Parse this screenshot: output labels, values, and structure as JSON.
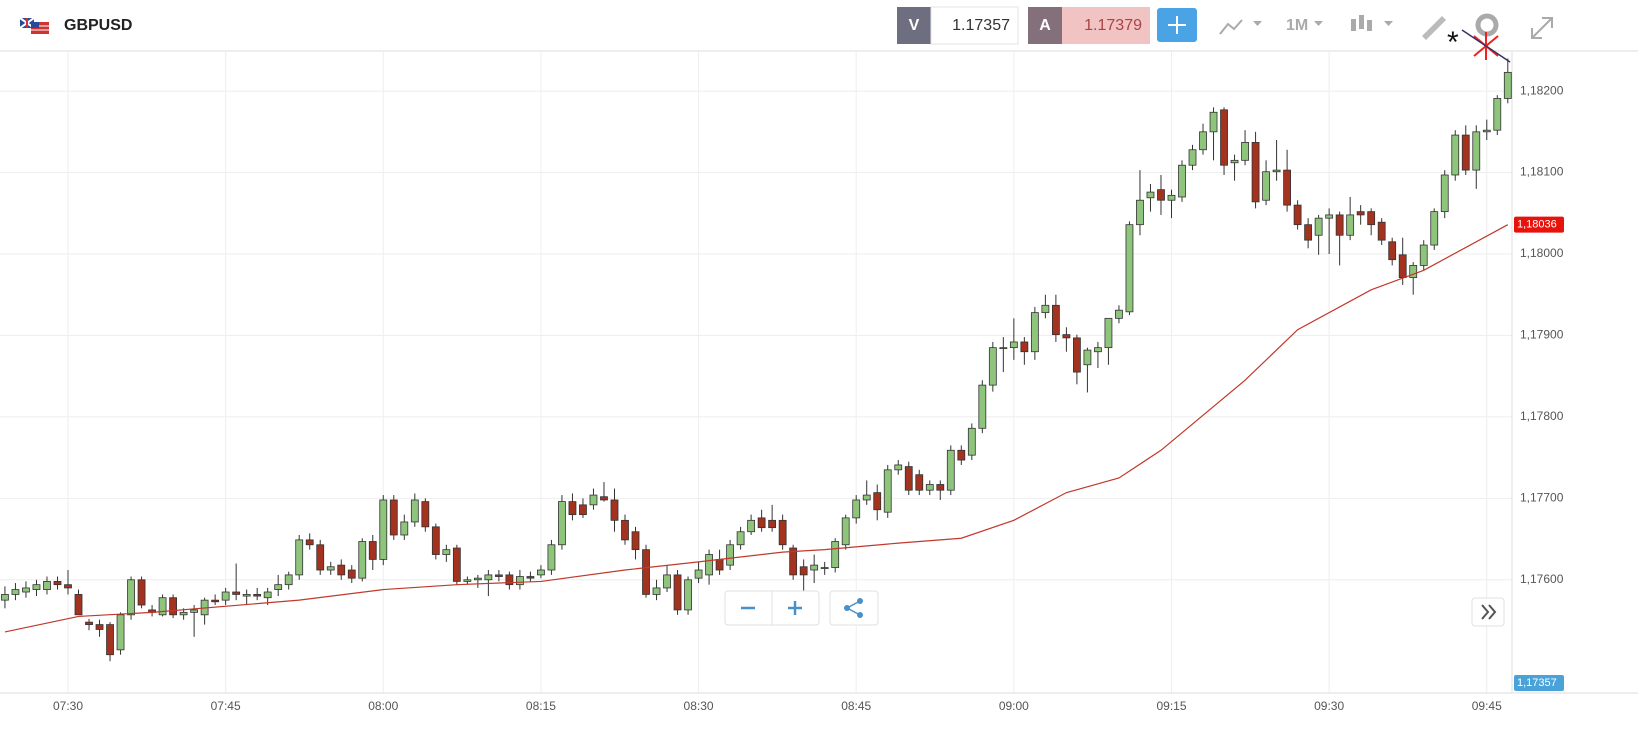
{
  "header": {
    "symbol": "GBPUSD",
    "bid_letter": "V",
    "bid": "1.17357",
    "ask_letter": "A",
    "ask": "1.17379",
    "timeframe": "1M"
  },
  "chart_data": {
    "type": "candlestick",
    "up_color": "#8fc47c",
    "down_color": "#a3321f",
    "grid": true,
    "xlim": [
      -0.47,
      143.4
    ],
    "ylim": [
      1.17461,
      1.18248
    ],
    "xticks": [
      {
        "value": 6,
        "label": "07:30"
      },
      {
        "value": 21,
        "label": "07:45"
      },
      {
        "value": 36,
        "label": "08:00"
      },
      {
        "value": 51,
        "label": "08:15"
      },
      {
        "value": 66,
        "label": "08:30"
      },
      {
        "value": 81,
        "label": "08:45"
      },
      {
        "value": 96,
        "label": "09:00"
      },
      {
        "value": 111,
        "label": "09:15"
      },
      {
        "value": 126,
        "label": "09:30"
      },
      {
        "value": 141,
        "label": "09:45"
      }
    ],
    "yticks": [
      {
        "value": 1.176,
        "label": "1,17600"
      },
      {
        "value": 1.177,
        "label": "1,17700"
      },
      {
        "value": 1.178,
        "label": "1,17800"
      },
      {
        "value": 1.179,
        "label": "1,17900"
      },
      {
        "value": 1.18,
        "label": "1,18000"
      },
      {
        "value": 1.181,
        "label": "1,18100"
      },
      {
        "value": 1.182,
        "label": "1,18200"
      }
    ],
    "ohlc": [
      [
        1.17575,
        1.17592,
        1.17565,
        1.17582
      ],
      [
        1.17582,
        1.17596,
        1.17575,
        1.17588
      ],
      [
        1.17585,
        1.17598,
        1.17578,
        1.1759
      ],
      [
        1.17588,
        1.176,
        1.1758,
        1.17594
      ],
      [
        1.17588,
        1.17604,
        1.17582,
        1.17598
      ],
      [
        1.17598,
        1.17604,
        1.17588,
        1.17594
      ],
      [
        1.17594,
        1.17612,
        1.17582,
        1.1759
      ],
      [
        1.17582,
        1.17588,
        1.17557,
        1.17557
      ],
      [
        1.17548,
        1.17552,
        1.17538,
        1.17545
      ],
      [
        1.17545,
        1.17551,
        1.1753,
        1.17539
      ],
      [
        1.17545,
        1.17548,
        1.175,
        1.17508
      ],
      [
        1.17514,
        1.1756,
        1.17508,
        1.17557
      ],
      [
        1.17557,
        1.17604,
        1.17551,
        1.176
      ],
      [
        1.176,
        1.17604,
        1.17565,
        1.17569
      ],
      [
        1.17563,
        1.17569,
        1.17555,
        1.1756
      ],
      [
        1.17557,
        1.17582,
        1.17555,
        1.17578
      ],
      [
        1.17578,
        1.17582,
        1.17553,
        1.17557
      ],
      [
        1.17557,
        1.17565,
        1.17551,
        1.1756
      ],
      [
        1.1756,
        1.17569,
        1.1753,
        1.17563
      ],
      [
        1.17557,
        1.17578,
        1.17545,
        1.17575
      ],
      [
        1.17575,
        1.17582,
        1.17569,
        1.17573
      ],
      [
        1.17575,
        1.1759,
        1.17569,
        1.17585
      ],
      [
        1.17585,
        1.1762,
        1.17575,
        1.17582
      ],
      [
        1.1758,
        1.17588,
        1.17569,
        1.17582
      ],
      [
        1.17582,
        1.1759,
        1.17575,
        1.1758
      ],
      [
        1.17578,
        1.1759,
        1.17569,
        1.17585
      ],
      [
        1.17588,
        1.17606,
        1.1758,
        1.17594
      ],
      [
        1.17594,
        1.1761,
        1.17588,
        1.17606
      ],
      [
        1.17606,
        1.17655,
        1.176,
        1.17649
      ],
      [
        1.17649,
        1.17657,
        1.17637,
        1.17643
      ],
      [
        1.17643,
        1.17649,
        1.17606,
        1.17612
      ],
      [
        1.17612,
        1.17622,
        1.17606,
        1.17616
      ],
      [
        1.17618,
        1.17625,
        1.176,
        1.17606
      ],
      [
        1.17612,
        1.17618,
        1.17596,
        1.17602
      ],
      [
        1.17602,
        1.17651,
        1.17598,
        1.17647
      ],
      [
        1.17647,
        1.17655,
        1.17612,
        1.17625
      ],
      [
        1.17625,
        1.17704,
        1.17618,
        1.17698
      ],
      [
        1.17698,
        1.17704,
        1.17649,
        1.17655
      ],
      [
        1.17655,
        1.1768,
        1.17649,
        1.17671
      ],
      [
        1.17671,
        1.17706,
        1.17665,
        1.17698
      ],
      [
        1.17696,
        1.177,
        1.17659,
        1.17665
      ],
      [
        1.17665,
        1.17669,
        1.17625,
        1.17631
      ],
      [
        1.17631,
        1.17643,
        1.17622,
        1.17637
      ],
      [
        1.17639,
        1.17643,
        1.17594,
        1.17598
      ],
      [
        1.17598,
        1.17604,
        1.17594,
        1.176
      ],
      [
        1.176,
        1.17606,
        1.1759,
        1.17602
      ],
      [
        1.176,
        1.17612,
        1.1758,
        1.17606
      ],
      [
        1.17606,
        1.17612,
        1.17598,
        1.17604
      ],
      [
        1.17606,
        1.1761,
        1.17588,
        1.17594
      ],
      [
        1.17594,
        1.17612,
        1.17588,
        1.17604
      ],
      [
        1.17604,
        1.1761,
        1.17598,
        1.17602
      ],
      [
        1.17606,
        1.17618,
        1.17602,
        1.17612
      ],
      [
        1.17612,
        1.17649,
        1.17606,
        1.17643
      ],
      [
        1.17643,
        1.17704,
        1.17637,
        1.17696
      ],
      [
        1.17696,
        1.17706,
        1.17673,
        1.1768
      ],
      [
        1.17692,
        1.177,
        1.17676,
        1.1768
      ],
      [
        1.17692,
        1.17712,
        1.17686,
        1.17704
      ],
      [
        1.17702,
        1.1772,
        1.17696,
        1.17698
      ],
      [
        1.17698,
        1.17712,
        1.17659,
        1.17673
      ],
      [
        1.17673,
        1.1768,
        1.17643,
        1.17649
      ],
      [
        1.17659,
        1.17665,
        1.17625,
        1.17637
      ],
      [
        1.17637,
        1.17643,
        1.17578,
        1.17582
      ],
      [
        1.17582,
        1.176,
        1.17575,
        1.1759
      ],
      [
        1.1759,
        1.17618,
        1.17585,
        1.17606
      ],
      [
        1.17606,
        1.17612,
        1.17557,
        1.17563
      ],
      [
        1.17563,
        1.17604,
        1.17557,
        1.176
      ],
      [
        1.17602,
        1.17622,
        1.17596,
        1.17612
      ],
      [
        1.17606,
        1.17637,
        1.17594,
        1.17631
      ],
      [
        1.17625,
        1.17637,
        1.17606,
        1.17612
      ],
      [
        1.17618,
        1.17649,
        1.17612,
        1.17643
      ],
      [
        1.17643,
        1.17665,
        1.17637,
        1.17659
      ],
      [
        1.17659,
        1.1768,
        1.17655,
        1.17673
      ],
      [
        1.17676,
        1.17686,
        1.17659,
        1.17664
      ],
      [
        1.17673,
        1.17692,
        1.17659,
        1.17664
      ],
      [
        1.17673,
        1.1768,
        1.17637,
        1.17643
      ],
      [
        1.17639,
        1.17643,
        1.176,
        1.17606
      ],
      [
        1.17616,
        1.17625,
        1.17582,
        1.17606
      ],
      [
        1.17612,
        1.17631,
        1.17596,
        1.17618
      ],
      [
        1.17615,
        1.17622,
        1.17606,
        1.17615
      ],
      [
        1.17615,
        1.17651,
        1.17609,
        1.17647
      ],
      [
        1.17643,
        1.1768,
        1.17637,
        1.17676
      ],
      [
        1.17676,
        1.17704,
        1.17669,
        1.17698
      ],
      [
        1.17698,
        1.17722,
        1.17692,
        1.17704
      ],
      [
        1.17707,
        1.17717,
        1.17673,
        1.17686
      ],
      [
        1.17683,
        1.17741,
        1.17676,
        1.17735
      ],
      [
        1.17735,
        1.17747,
        1.17729,
        1.17741
      ],
      [
        1.17739,
        1.17745,
        1.17704,
        1.1771
      ],
      [
        1.17729,
        1.17735,
        1.17704,
        1.1771
      ],
      [
        1.1771,
        1.17722,
        1.17704,
        1.17717
      ],
      [
        1.17717,
        1.17722,
        1.17698,
        1.1771
      ],
      [
        1.1771,
        1.17765,
        1.17704,
        1.17759
      ],
      [
        1.17759,
        1.17765,
        1.17741,
        1.17747
      ],
      [
        1.17753,
        1.17792,
        1.17747,
        1.17786
      ],
      [
        1.17786,
        1.17845,
        1.1778,
        1.17839
      ],
      [
        1.17839,
        1.17892,
        1.17831,
        1.17885
      ],
      [
        1.17885,
        1.17898,
        1.17855,
        1.17885
      ],
      [
        1.17885,
        1.17921,
        1.1787,
        1.17892
      ],
      [
        1.17892,
        1.17898,
        1.17864,
        1.1788
      ],
      [
        1.1788,
        1.17935,
        1.1787,
        1.17928
      ],
      [
        1.17928,
        1.1795,
        1.17921,
        1.17937
      ],
      [
        1.17937,
        1.1795,
        1.17892,
        1.17901
      ],
      [
        1.17901,
        1.1791,
        1.1788,
        1.17897
      ],
      [
        1.17897,
        1.17901,
        1.1784,
        1.17855
      ],
      [
        1.17864,
        1.17885,
        1.1783,
        1.17882
      ],
      [
        1.1788,
        1.17892,
        1.1786,
        1.17885
      ],
      [
        1.17885,
        1.17921,
        1.17864,
        1.17921
      ],
      [
        1.17921,
        1.17937,
        1.17915,
        1.17931
      ],
      [
        1.17929,
        1.1804,
        1.17925,
        1.18036
      ],
      [
        1.18036,
        1.18103,
        1.18023,
        1.18066
      ],
      [
        1.18069,
        1.18086,
        1.18052,
        1.18076
      ],
      [
        1.18079,
        1.18097,
        1.18048,
        1.18066
      ],
      [
        1.18066,
        1.18079,
        1.18044,
        1.18072
      ],
      [
        1.1807,
        1.18115,
        1.18064,
        1.18109
      ],
      [
        1.18109,
        1.18134,
        1.18103,
        1.18128
      ],
      [
        1.18128,
        1.1816,
        1.18122,
        1.1815
      ],
      [
        1.1815,
        1.1818,
        1.18115,
        1.18174
      ],
      [
        1.18177,
        1.1818,
        1.18097,
        1.18109
      ],
      [
        1.18112,
        1.18122,
        1.1809,
        1.18115
      ],
      [
        1.18115,
        1.18152,
        1.18109,
        1.18137
      ],
      [
        1.18137,
        1.1815,
        1.18056,
        1.18064
      ],
      [
        1.18066,
        1.18115,
        1.1806,
        1.18101
      ],
      [
        1.18101,
        1.1814,
        1.1809,
        1.18103
      ],
      [
        1.18103,
        1.18128,
        1.18052,
        1.1806
      ],
      [
        1.1806,
        1.18066,
        1.1803,
        1.18036
      ],
      [
        1.18036,
        1.18044,
        1.18007,
        1.18017
      ],
      [
        1.18023,
        1.18048,
        1.17999,
        1.18044
      ],
      [
        1.18044,
        1.18056,
        1.18,
        1.18048
      ],
      [
        1.18048,
        1.18052,
        1.17986,
        1.18023
      ],
      [
        1.18023,
        1.1807,
        1.18017,
        1.18048
      ],
      [
        1.18052,
        1.1806,
        1.18036,
        1.18048
      ],
      [
        1.18052,
        1.18056,
        1.18023,
        1.18036
      ],
      [
        1.18039,
        1.18044,
        1.18011,
        1.18017
      ],
      [
        1.18015,
        1.1802,
        1.17986,
        1.17993
      ],
      [
        1.17999,
        1.1802,
        1.17962,
        1.17971
      ],
      [
        1.17971,
        1.1799,
        1.1795,
        1.17986
      ],
      [
        1.17986,
        1.18017,
        1.1798,
        1.18011
      ],
      [
        1.18011,
        1.18056,
        1.18005,
        1.18052
      ],
      [
        1.18052,
        1.18103,
        1.18044,
        1.18097
      ],
      [
        1.18097,
        1.18152,
        1.1809,
        1.18146
      ],
      [
        1.18146,
        1.18158,
        1.18097,
        1.18103
      ],
      [
        1.18103,
        1.18158,
        1.1808,
        1.1815
      ],
      [
        1.1815,
        1.18165,
        1.1814,
        1.18152
      ],
      [
        1.18152,
        1.18195,
        1.18146,
        1.18191
      ],
      [
        1.18191,
        1.1824,
        1.18185,
        1.18223
      ]
    ],
    "ma": {
      "color": "#c0392b",
      "x": [
        0,
        7,
        14,
        28,
        36,
        43,
        51,
        59,
        66,
        74,
        78,
        85,
        91,
        96,
        101,
        106,
        110,
        118,
        123,
        130,
        135,
        143
      ],
      "values": [
        1.17536,
        1.17555,
        1.1756,
        1.17575,
        1.17588,
        1.17594,
        1.17598,
        1.17612,
        1.17622,
        1.17634,
        1.17637,
        1.17645,
        1.17651,
        1.17673,
        1.17707,
        1.17725,
        1.17759,
        1.17845,
        1.17907,
        1.17956,
        1.1798,
        1.18036
      ]
    },
    "ma_tag": {
      "value": 1.18036,
      "label": "1,18036"
    },
    "bid_tag": {
      "value": 1.17357,
      "label": "1,17357"
    }
  }
}
